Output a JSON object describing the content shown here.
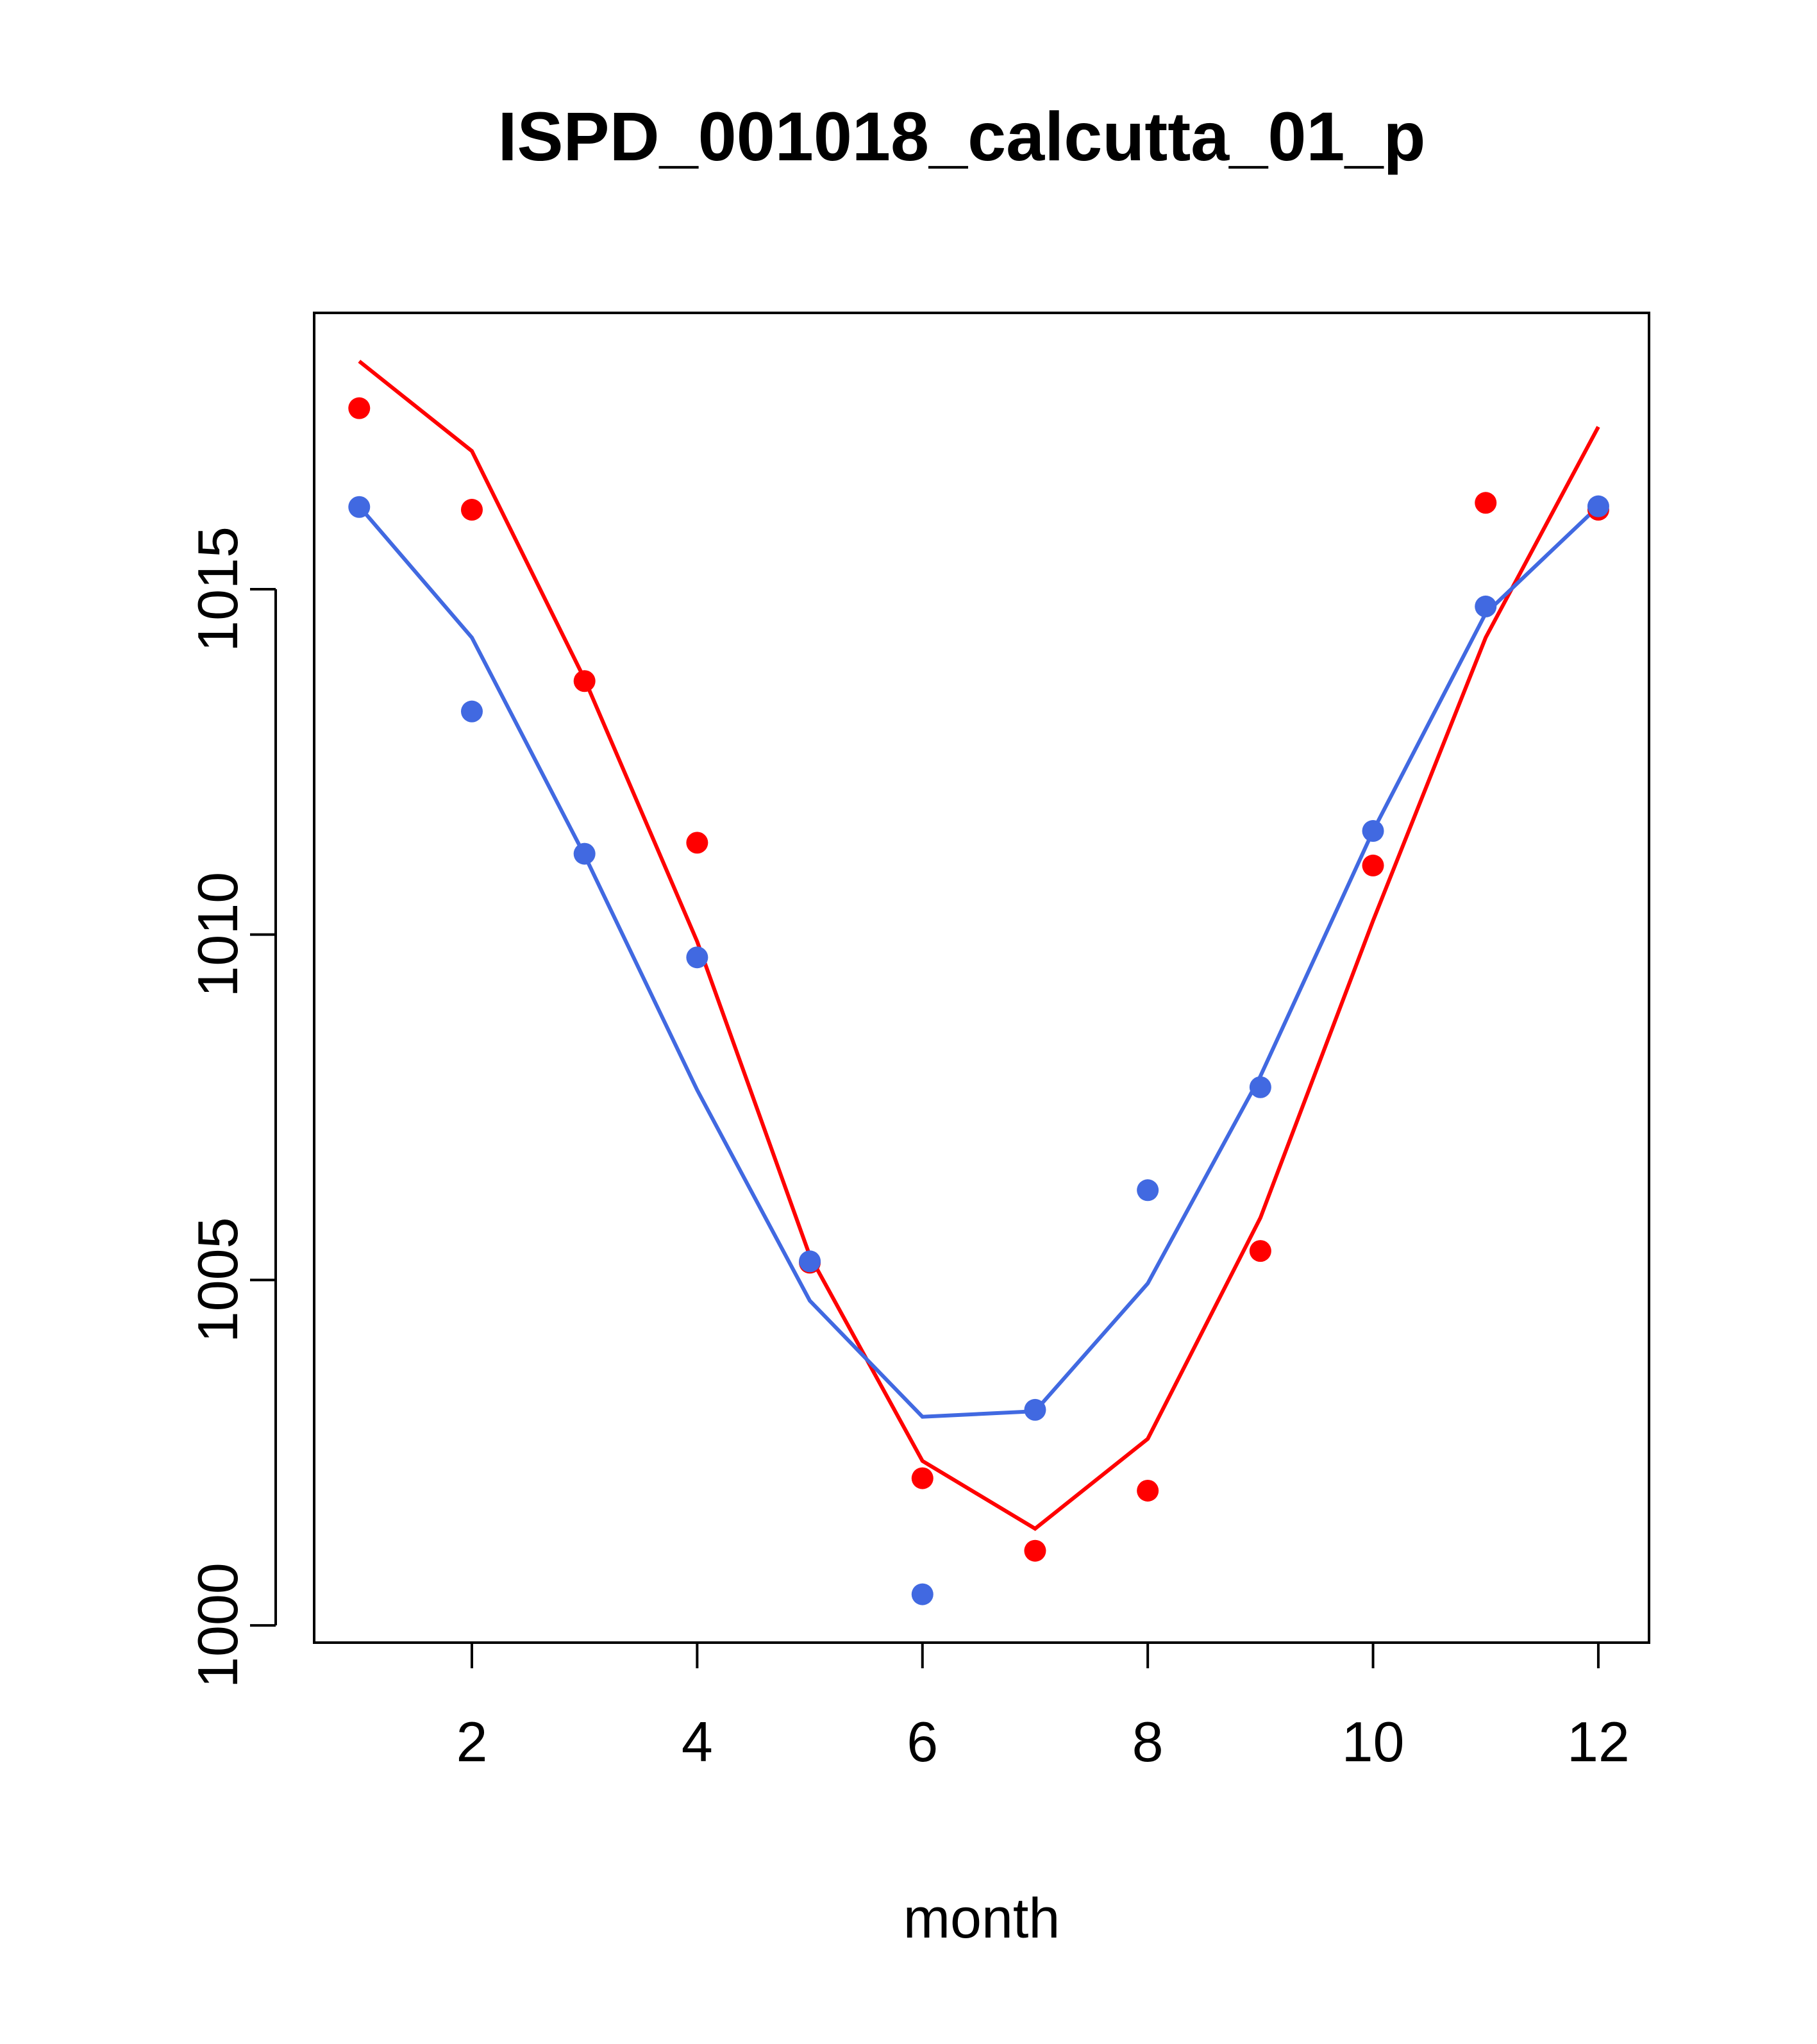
{
  "chart_data": {
    "type": "line",
    "title": "ISPD_001018_calcutta_01_p",
    "xlabel": "month",
    "ylabel": "",
    "xlim": [
      0.6,
      12.45
    ],
    "ylim": [
      999.75,
      1019.0
    ],
    "xticks": [
      2,
      4,
      6,
      8,
      10,
      12
    ],
    "yticks": [
      1000,
      1005,
      1010,
      1015
    ],
    "xtick_labels": [
      "2",
      "4",
      "6",
      "8",
      "10",
      "12"
    ],
    "ytick_labels": [
      "1000",
      "1005",
      "1010",
      "1015"
    ],
    "x": [
      1,
      2,
      3,
      4,
      5,
      6,
      7,
      8,
      9,
      10,
      11,
      12
    ],
    "series": [
      {
        "name": "red points",
        "kind": "scatter",
        "color": "#ff0000",
        "values": [
          1017.62,
          1016.15,
          1013.67,
          1011.33,
          1005.25,
          1002.13,
          1001.08,
          1001.95,
          1005.42,
          1011.0,
          1016.25,
          1016.15
        ]
      },
      {
        "name": "red line",
        "kind": "line",
        "color": "#ff0000",
        "values": [
          1018.3,
          1017.0,
          1013.7,
          1009.9,
          1005.35,
          1002.38,
          1001.4,
          1002.7,
          1005.9,
          1010.2,
          1014.3,
          1017.35
        ]
      },
      {
        "name": "blue points",
        "kind": "scatter",
        "color": "#4169e1",
        "values": [
          1016.19,
          1013.23,
          1011.17,
          1009.67,
          1005.27,
          1000.45,
          1003.12,
          1006.3,
          1007.79,
          1011.5,
          1014.75,
          1016.2
        ]
      },
      {
        "name": "blue line",
        "kind": "line",
        "color": "#4169e1",
        "values": [
          1016.2,
          1014.3,
          1011.15,
          1007.75,
          1004.7,
          1003.02,
          1003.1,
          1004.95,
          1007.95,
          1011.5,
          1014.65,
          1016.2
        ]
      }
    ]
  }
}
